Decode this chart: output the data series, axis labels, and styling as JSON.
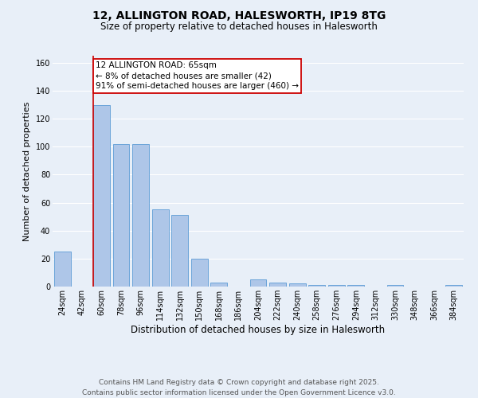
{
  "title": "12, ALLINGTON ROAD, HALESWORTH, IP19 8TG",
  "subtitle": "Size of property relative to detached houses in Halesworth",
  "xlabel": "Distribution of detached houses by size in Halesworth",
  "ylabel": "Number of detached properties",
  "categories": [
    "24sqm",
    "42sqm",
    "60sqm",
    "78sqm",
    "96sqm",
    "114sqm",
    "132sqm",
    "150sqm",
    "168sqm",
    "186sqm",
    "204sqm",
    "222sqm",
    "240sqm",
    "258sqm",
    "276sqm",
    "294sqm",
    "312sqm",
    "330sqm",
    "348sqm",
    "366sqm",
    "384sqm"
  ],
  "values": [
    25,
    0,
    130,
    102,
    102,
    55,
    51,
    20,
    3,
    0,
    5,
    3,
    2,
    1,
    1,
    1,
    0,
    1,
    0,
    0,
    1
  ],
  "bar_color": "#aec6e8",
  "bar_edge_color": "#5b9bd5",
  "bg_color": "#e8eff8",
  "grid_color": "#ffffff",
  "annotation_box_color": "#ffffff",
  "annotation_box_edge": "#cc0000",
  "vline_color": "#cc0000",
  "annotation_line1": "12 ALLINGTON ROAD: 65sqm",
  "annotation_line2": "← 8% of detached houses are smaller (42)",
  "annotation_line3": "91% of semi-detached houses are larger (460) →",
  "footer1": "Contains HM Land Registry data © Crown copyright and database right 2025.",
  "footer2": "Contains public sector information licensed under the Open Government Licence v3.0.",
  "ylim": [
    0,
    165
  ],
  "yticks": [
    0,
    20,
    40,
    60,
    80,
    100,
    120,
    140,
    160
  ],
  "title_fontsize": 10,
  "subtitle_fontsize": 8.5,
  "xlabel_fontsize": 8.5,
  "ylabel_fontsize": 8,
  "tick_fontsize": 7,
  "annotation_fontsize": 7.5,
  "footer_fontsize": 6.5
}
